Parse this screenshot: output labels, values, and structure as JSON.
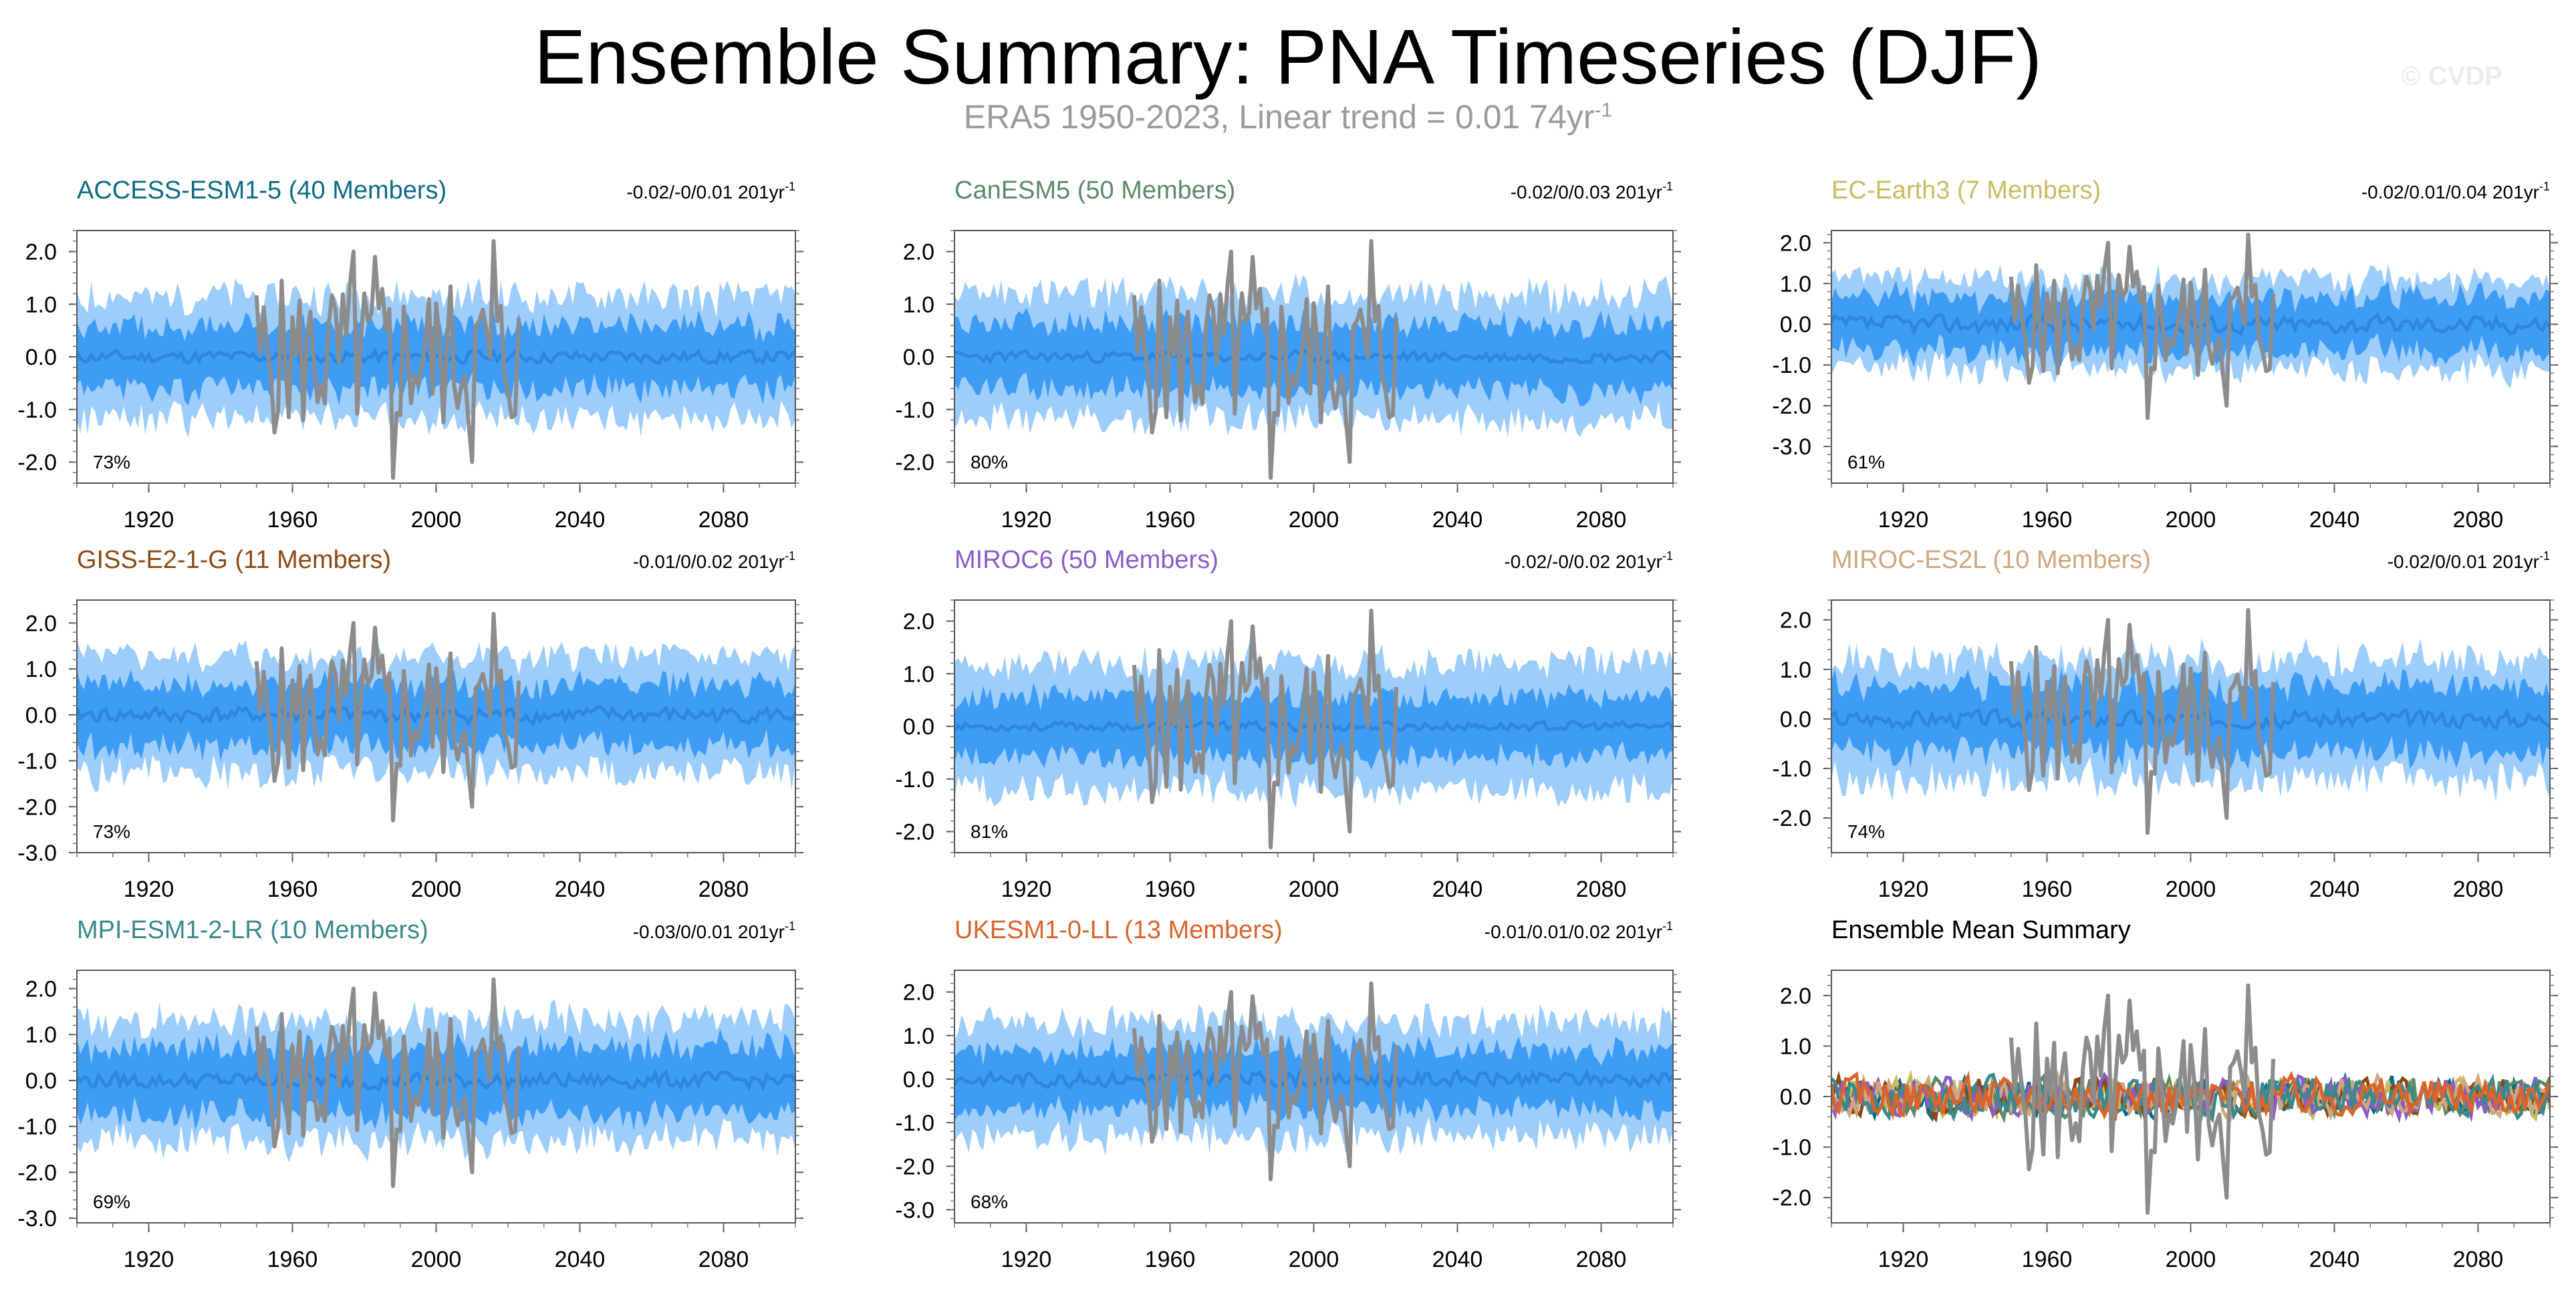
{
  "figure": {
    "title": "Ensemble Summary: PNA Timeseries (DJF)",
    "subtitle": "ERA5 1950-2023, Linear trend = 0.01 74yr",
    "subtitle_sup": "-1",
    "watermark": "© CVDP"
  },
  "colors": {
    "outer_band": "#9dcdfb",
    "inner_band": "#3f9cf4",
    "model_mean": "#2e86e0",
    "observations": "#8c8c8c"
  },
  "chart_data": [
    {
      "type": "area",
      "title": "ACCESS-ESM1-5 (40 Members)",
      "title_color": "#0e6b84",
      "trend_text": "-0.02/-0/0.01 201yr",
      "trend_sup": "-1",
      "pct": "73%",
      "xlim": [
        1900,
        2100
      ],
      "ylim": [
        -2.4,
        2.4
      ],
      "yticks": [
        "2.0",
        "1.0",
        "0.0",
        "-1.0",
        "-2.0"
      ],
      "ytick_values": [
        2,
        1,
        0,
        -1,
        -2
      ],
      "xticks": [
        "1920",
        "1960",
        "2000",
        "2040",
        "2080"
      ],
      "xtick_values": [
        1920,
        1960,
        2000,
        2040,
        2080
      ],
      "seed": 11,
      "outer_amp": 1.15,
      "inner_amp": 0.62,
      "mean_amp": 0.14,
      "obs_range": [
        1950,
        2023
      ]
    },
    {
      "type": "area",
      "title": "CanESM5 (50 Members)",
      "title_color": "#5b8a68",
      "trend_text": "-0.02/0/0.03 201yr",
      "trend_sup": "-1",
      "pct": "80%",
      "xlim": [
        1900,
        2100
      ],
      "ylim": [
        -2.4,
        2.4
      ],
      "yticks": [
        "2.0",
        "1.0",
        "0.0",
        "-1.0",
        "-2.0"
      ],
      "ytick_values": [
        2,
        1,
        0,
        -1,
        -2
      ],
      "xticks": [
        "1920",
        "1960",
        "2000",
        "2040",
        "2080"
      ],
      "xtick_values": [
        1920,
        1960,
        2000,
        2040,
        2080
      ],
      "seed": 23,
      "outer_amp": 1.2,
      "inner_amp": 0.65,
      "mean_amp": 0.12,
      "obs_range": [
        1950,
        2023
      ]
    },
    {
      "type": "area",
      "title": "EC-Earth3 (7 Members)",
      "title_color": "#c9bb62",
      "trend_text": "-0.02/0.01/0.04 201yr",
      "trend_sup": "-1",
      "pct": "61%",
      "xlim": [
        1900,
        2100
      ],
      "ylim": [
        -3.9,
        2.3
      ],
      "yticks": [
        "2.0",
        "1.0",
        "0.0",
        "-1.0",
        "-2.0",
        "-3.0"
      ],
      "ytick_values": [
        2,
        1,
        0,
        -1,
        -2,
        -3
      ],
      "xticks": [
        "1920",
        "1960",
        "2000",
        "2040",
        "2080"
      ],
      "xtick_values": [
        1920,
        1960,
        2000,
        2040,
        2080
      ],
      "seed": 37,
      "outer_amp": 1.1,
      "inner_amp": 0.7,
      "mean_amp": 0.25,
      "obs_range": [
        1950,
        2023
      ]
    },
    {
      "type": "area",
      "title": "GISS-E2-1-G (11 Members)",
      "title_color": "#8a4a14",
      "trend_text": "-0.01/0/0.02 201yr",
      "trend_sup": "-1",
      "pct": "73%",
      "xlim": [
        1900,
        2100
      ],
      "ylim": [
        -3.0,
        2.5
      ],
      "yticks": [
        "2.0",
        "1.0",
        "0.0",
        "-1.0",
        "-2.0",
        "-3.0"
      ],
      "ytick_values": [
        2,
        1,
        0,
        -1,
        -2,
        -3
      ],
      "xticks": [
        "1920",
        "1960",
        "2000",
        "2040",
        "2080"
      ],
      "xtick_values": [
        1920,
        1960,
        2000,
        2040,
        2080
      ],
      "seed": 41,
      "outer_amp": 1.25,
      "inner_amp": 0.7,
      "mean_amp": 0.2,
      "obs_range": [
        1950,
        2023
      ]
    },
    {
      "type": "area",
      "title": "MIROC6 (50 Members)",
      "title_color": "#8a5cc8",
      "trend_text": "-0.02/-0/0.02 201yr",
      "trend_sup": "-1",
      "pct": "81%",
      "xlim": [
        1900,
        2100
      ],
      "ylim": [
        -2.4,
        2.4
      ],
      "yticks": [
        "2.0",
        "1.0",
        "0.0",
        "-1.0",
        "-2.0"
      ],
      "ytick_values": [
        2,
        1,
        0,
        -1,
        -2
      ],
      "xticks": [
        "1920",
        "1960",
        "2000",
        "2040",
        "2080"
      ],
      "xtick_values": [
        1920,
        1960,
        2000,
        2040,
        2080
      ],
      "seed": 53,
      "outer_amp": 1.2,
      "inner_amp": 0.6,
      "mean_amp": 0.1,
      "obs_range": [
        1950,
        2023
      ]
    },
    {
      "type": "area",
      "title": "MIROC-ES2L (10 Members)",
      "title_color": "#cfa67e",
      "trend_text": "-0.02/0/0.01 201yr",
      "trend_sup": "-1",
      "pct": "74%",
      "xlim": [
        1900,
        2100
      ],
      "ylim": [
        -2.7,
        2.4
      ],
      "yticks": [
        "2.0",
        "1.0",
        "0.0",
        "-1.0",
        "-2.0"
      ],
      "ytick_values": [
        2,
        1,
        0,
        -1,
        -2
      ],
      "xticks": [
        "1920",
        "1960",
        "2000",
        "2040",
        "2080"
      ],
      "xtick_values": [
        1920,
        1960,
        2000,
        2040,
        2080
      ],
      "seed": 67,
      "outer_amp": 1.2,
      "inner_amp": 0.7,
      "mean_amp": 0.2,
      "obs_range": [
        1950,
        2023
      ]
    },
    {
      "type": "area",
      "title": "MPI-ESM1-2-LR (10 Members)",
      "title_color": "#3a8a8c",
      "trend_text": "-0.03/0/0.01 201yr",
      "trend_sup": "-1",
      "pct": "69%",
      "xlim": [
        1900,
        2100
      ],
      "ylim": [
        -3.1,
        2.4
      ],
      "yticks": [
        "2.0",
        "1.0",
        "0.0",
        "-1.0",
        "-2.0",
        "-3.0"
      ],
      "ytick_values": [
        2,
        1,
        0,
        -1,
        -2,
        -3
      ],
      "xticks": [
        "1920",
        "1960",
        "2000",
        "2040",
        "2080"
      ],
      "xtick_values": [
        1920,
        1960,
        2000,
        2040,
        2080
      ],
      "seed": 79,
      "outer_amp": 1.3,
      "inner_amp": 0.75,
      "mean_amp": 0.2,
      "obs_range": [
        1950,
        2023
      ]
    },
    {
      "type": "area",
      "title": "UKESM1-0-LL (13 Members)",
      "title_color": "#d9652b",
      "trend_text": "-0.01/0.01/0.02 201yr",
      "trend_sup": "-1",
      "pct": "68%",
      "xlim": [
        1900,
        2100
      ],
      "ylim": [
        -3.3,
        2.5
      ],
      "yticks": [
        "2.0",
        "1.0",
        "0.0",
        "-1.0",
        "-2.0",
        "-3.0"
      ],
      "ytick_values": [
        2,
        1,
        0,
        -1,
        -2,
        -3
      ],
      "xticks": [
        "1920",
        "1960",
        "2000",
        "2040",
        "2080"
      ],
      "xtick_values": [
        1920,
        1960,
        2000,
        2040,
        2080
      ],
      "seed": 83,
      "outer_amp": 1.3,
      "inner_amp": 0.7,
      "mean_amp": 0.2,
      "obs_range": [
        1950,
        2023
      ]
    },
    {
      "type": "line",
      "title": "Ensemble Mean Summary",
      "title_color": "#000000",
      "trend_text": "",
      "trend_sup": "",
      "pct": "",
      "xlim": [
        1900,
        2100
      ],
      "ylim": [
        -2.5,
        2.5
      ],
      "yticks": [
        "2.0",
        "1.0",
        "0.0",
        "-1.0",
        "-2.0"
      ],
      "ytick_values": [
        2,
        1,
        0,
        -1,
        -2
      ],
      "xticks": [
        "1920",
        "1960",
        "2000",
        "2040",
        "2080"
      ],
      "xtick_values": [
        1920,
        1960,
        2000,
        2040,
        2080
      ],
      "seed": 97,
      "obs_range": [
        1950,
        2023
      ],
      "series_colors": [
        "#0e6b84",
        "#5b8a68",
        "#c9bb62",
        "#8a4a14",
        "#8a5cc8",
        "#cfa67e",
        "#3a8a8c",
        "#d9652b"
      ]
    }
  ]
}
